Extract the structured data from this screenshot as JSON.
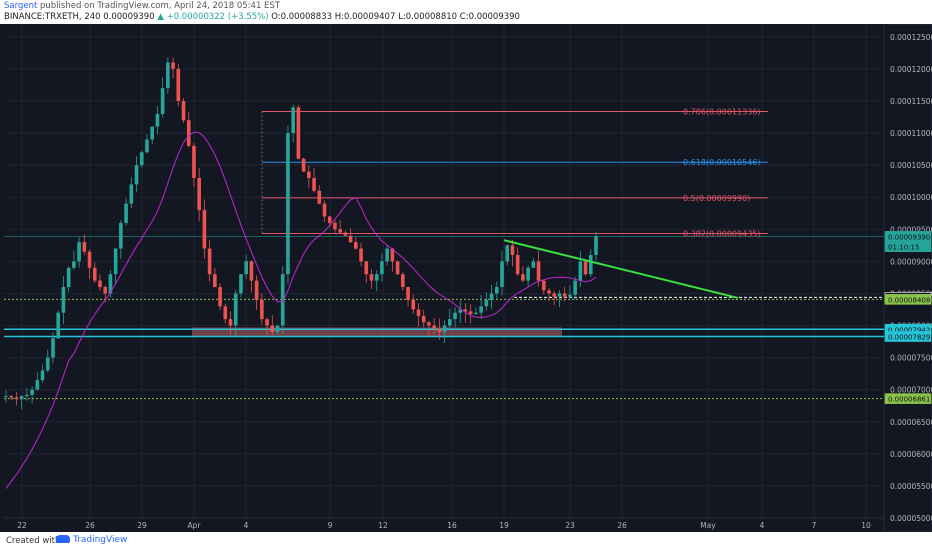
{
  "header": {
    "author": "Sargent",
    "published": " published on TradingView.com, April 24, 2018 05:41 EST",
    "symbol": "BINANCE:TRXETH, 240",
    "last": "0.00009390",
    "change": "+0.00000322 (+3.55%)",
    "open_label": "O:",
    "open": "0.00008833",
    "high_label": "H:",
    "high": "0.00009407",
    "low_label": "L:",
    "low": "0.00008810",
    "close_label": "C:",
    "close": "0.00009390"
  },
  "footer": {
    "created": "Created with",
    "brand": "TradingView"
  },
  "colors": {
    "bg": "#131722",
    "up": "#26a69a",
    "down": "#ef5350",
    "ma": "#c026d3",
    "fib_red": "#e05666",
    "fib_blue": "#2196f3",
    "trend": "#39e23f",
    "support": "#26c6da",
    "dotted": "#8bc34a",
    "grid": "#1f2433"
  },
  "chart_data": {
    "type": "candlestick",
    "y_range": [
      5e-05,
      0.000127
    ],
    "y_ticks": [
      "0.00012500",
      "0.00012000",
      "0.00011500",
      "0.00011000",
      "0.00010500",
      "0.00010000",
      "0.00009500",
      "0.00009000",
      "0.00008500",
      "0.00008000",
      "0.00007500",
      "0.00007000",
      "0.00006500",
      "0.00006000",
      "0.00005500",
      "0.00005000"
    ],
    "x_ticks": [
      "22",
      "26",
      "29",
      "Apr",
      "4",
      "9",
      "12",
      "16",
      "19",
      "23",
      "26",
      "May",
      "4",
      "7",
      "10"
    ],
    "fib_levels": [
      {
        "label": "0.786(0.00011336)",
        "value": 0.00011336,
        "color": "#e05666"
      },
      {
        "label": "0.618(0.00010546)",
        "value": 0.00010546,
        "color": "#2196f3"
      },
      {
        "label": "0.5(0.00009990)",
        "value": 9.99e-05,
        "color": "#e05666"
      },
      {
        "label": "0.382(0.00009435)",
        "value": 9.435e-05,
        "color": "#e05666"
      }
    ],
    "price_tags": [
      {
        "label": "0.00009390",
        "value": 9.39e-05,
        "color": "#26a69a"
      },
      {
        "label": "01:10:15",
        "value": 9.23e-05,
        "color": "#26a69a"
      },
      {
        "label": "0.00008439",
        "value": 8.439e-05,
        "color": "#131722"
      },
      {
        "label": "0.00008408",
        "value": 8.408e-05,
        "color": "#8bc34a"
      },
      {
        "label": "0.00007942",
        "value": 7.942e-05,
        "color": "#26c6da"
      },
      {
        "label": "0.00007829",
        "value": 7.829e-05,
        "color": "#26c6da"
      },
      {
        "label": "0.00006861",
        "value": 6.861e-05,
        "color": "#8bc34a"
      }
    ],
    "support_lines": [
      7.942e-05,
      7.829e-05
    ],
    "dotted_lines": [
      8.408e-05,
      6.861e-05
    ],
    "white_dashed": 8.439e-05,
    "last_price": 9.39e-05,
    "trendline": {
      "from": [
        9.33e-05,
        "Apr 19"
      ],
      "to": [
        8.43e-05,
        "May 2"
      ]
    },
    "zone": [
      7.83e-05,
      7.97e-05
    ],
    "candle_path": [
      6.9e-05,
      6.88e-05,
      6.85e-05,
      6.9e-05,
      6.92e-05,
      7e-05,
      7.15e-05,
      7.3e-05,
      7.5e-05,
      7.8e-05,
      8.2e-05,
      8.6e-05,
      8.9e-05,
      9e-05,
      9.3e-05,
      9.15e-05,
      8.9e-05,
      8.7e-05,
      8.6e-05,
      8.5e-05,
      8.8e-05,
      9.2e-05,
      9.6e-05,
      9.9e-05,
      0.000102,
      0.000105,
      0.000107,
      0.000109,
      0.000111,
      0.000113,
      0.000117,
      0.000121,
      0.00012,
      0.000115,
      0.000112,
      0.000108,
      0.000103,
      9.8e-05,
      9.2e-05,
      8.8e-05,
      8.6e-05,
      8.3e-05,
      8.1e-05,
      8e-05,
      8.5e-05,
      8.8e-05,
      9e-05,
      8.7e-05,
      8.4e-05,
      8.1e-05,
      8e-05,
      7.9e-05,
      8e-05,
      8.8e-05,
      0.00011,
      0.000114,
      0.000106,
      0.000104,
      0.000103,
      0.000101,
      9.9e-05,
      9.7e-05,
      9.6e-05,
      9.5e-05,
      9.45e-05,
      9.4e-05,
      9.3e-05,
      9.2e-05,
      9e-05,
      8.8e-05,
      8.7e-05,
      8.8e-05,
      9e-05,
      9.2e-05,
      9e-05,
      8.8e-05,
      8.6e-05,
      8.4e-05,
      8.25e-05,
      8.15e-05,
      8.05e-05,
      8e-05,
      7.95e-05,
      7.9e-05,
      8e-05,
      8.1e-05,
      8.2e-05,
      8.25e-05,
      8.22e-05,
      8.18e-05,
      8.2e-05,
      8.3e-05,
      8.4e-05,
      8.5e-05,
      8.6e-05,
      9e-05,
      9.25e-05,
      9.1e-05,
      8.8e-05,
      8.7e-05,
      8.9e-05,
      9e-05,
      8.7e-05,
      8.55e-05,
      8.5e-05,
      8.45e-05,
      8.5e-05,
      8.45e-05,
      8.48e-05,
      8.7e-05,
      9e-05,
      8.8e-05,
      9.1e-05,
      9.39e-05
    ]
  }
}
